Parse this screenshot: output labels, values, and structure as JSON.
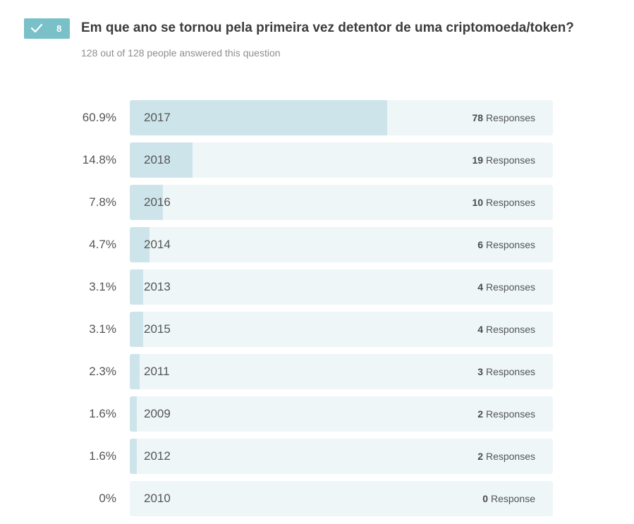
{
  "header": {
    "question_number": "8",
    "question": "Em que ano se tornou pela primeira vez detentor de uma criptomoeda/token?",
    "answered": "128 out of 128 people answered this question",
    "badge_color": "#79c0c8",
    "check_icon": "check-icon"
  },
  "chart_data": {
    "type": "bar",
    "orientation": "horizontal",
    "xlim": [
      0,
      100
    ],
    "categories": [
      "2017",
      "2018",
      "2016",
      "2014",
      "2013",
      "2015",
      "2011",
      "2009",
      "2012",
      "2010"
    ],
    "percent_labels": [
      "60.9%",
      "14.8%",
      "7.8%",
      "4.7%",
      "3.1%",
      "3.1%",
      "2.3%",
      "1.6%",
      "1.6%",
      "0%"
    ],
    "values": [
      60.9,
      14.8,
      7.8,
      4.7,
      3.1,
      3.1,
      2.3,
      1.6,
      1.6,
      0
    ],
    "counts": [
      "78",
      "19",
      "10",
      "6",
      "4",
      "4",
      "3",
      "2",
      "2",
      "0"
    ],
    "count_units": [
      "Responses",
      "Responses",
      "Responses",
      "Responses",
      "Responses",
      "Responses",
      "Responses",
      "Responses",
      "Responses",
      "Response"
    ],
    "colors": {
      "fill": "#cde5ea",
      "track": "#eef6f8"
    }
  }
}
